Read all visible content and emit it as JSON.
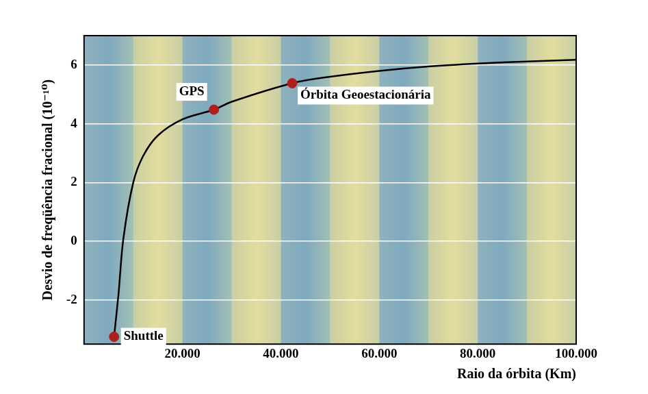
{
  "chart_data": {
    "type": "line",
    "x_label": "Raio da órbita (Km)",
    "y_label": "Desvio de freqüência fracional (10⁻¹⁰)",
    "x": [
      6100,
      7000,
      8000,
      10000,
      12000,
      15000,
      20000,
      26400,
      30000,
      42300,
      50000,
      60000,
      70000,
      80000,
      90000,
      100000
    ],
    "values": [
      -3.25,
      -1.8,
      0.1,
      2.0,
      2.9,
      3.6,
      4.15,
      4.48,
      4.75,
      5.38,
      5.6,
      5.8,
      5.95,
      6.05,
      6.12,
      6.18
    ],
    "color": "#000000",
    "xlim": [
      0,
      100000
    ],
    "xticks": [
      {
        "value": 20000,
        "label": "20.000"
      },
      {
        "value": 40000,
        "label": "40.000"
      },
      {
        "value": 60000,
        "label": "60.000"
      },
      {
        "value": 80000,
        "label": "80.000"
      },
      {
        "value": 100000,
        "label": "100.000"
      }
    ],
    "ylim": [
      -3.5,
      7
    ],
    "yticks": [
      -2,
      0,
      2,
      4,
      6
    ],
    "grid": "y",
    "annotations": [
      {
        "text": "Shuttle",
        "x": 6100,
        "y": -3.25,
        "color": "#b01e1e",
        "marker": "circle"
      },
      {
        "text": "GPS",
        "x": 26400,
        "y": 4.48,
        "color": "#b01e1e",
        "marker": "circle"
      },
      {
        "text": "Órbita Geoestacionária",
        "x": 42300,
        "y": 5.38,
        "color": "#b01e1e",
        "marker": "circle"
      }
    ]
  }
}
